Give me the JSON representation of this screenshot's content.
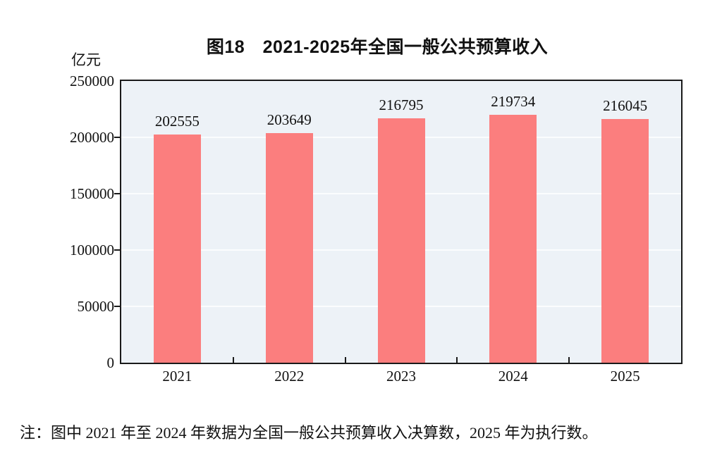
{
  "figure": {
    "title": "图18　2021-2025年全国一般公共预算收入",
    "unit_label": "亿元",
    "note": "注：图中 2021 年至 2024 年数据为全国一般公共预算收入决算数，2025 年为执行数。"
  },
  "chart_data": {
    "type": "bar",
    "title": "图18　2021-2025年全国一般公共预算收入",
    "unit": "亿元",
    "categories": [
      "2021",
      "2022",
      "2023",
      "2024",
      "2025"
    ],
    "values": [
      202555,
      203649,
      216795,
      219734,
      216045
    ],
    "xlabel": "",
    "ylabel": "亿元",
    "ylim": [
      0,
      250000
    ],
    "yticks": [
      0,
      50000,
      100000,
      150000,
      200000,
      250000
    ],
    "grid": true,
    "legend": "none",
    "data_labels": true,
    "bar_color": "#fb7e7e",
    "plot_bg_color": "#edf2f7",
    "frame_color": "#1a1a1a",
    "note": "注：图中 2021 年至 2024 年数据为全国一般公共预算收入决算数，2025 年为执行数。"
  }
}
